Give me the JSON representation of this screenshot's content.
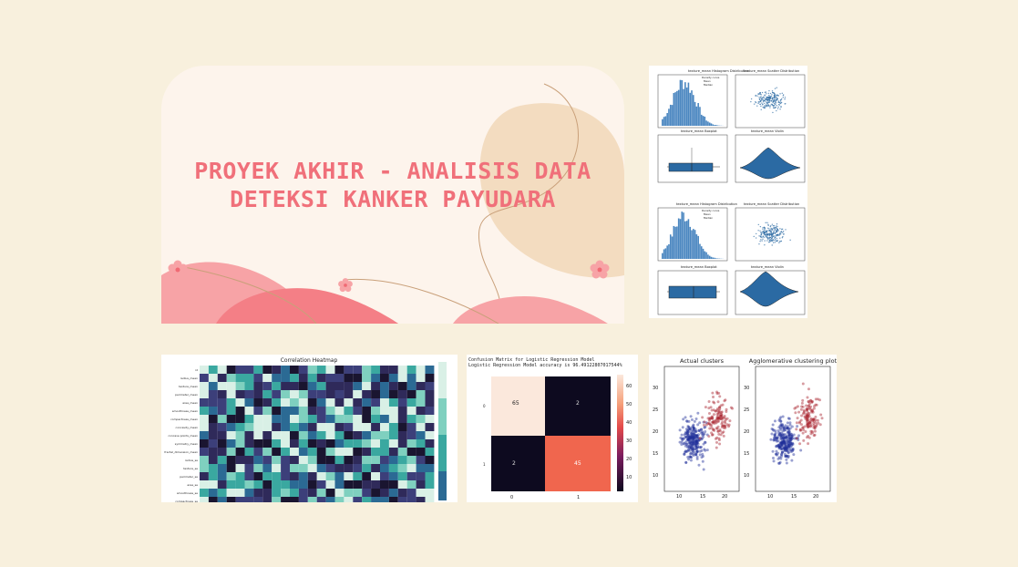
{
  "slide": {
    "title_line1": "PROYEK AKHIR - ANALISIS DATA",
    "title_line2": "DETEKSI KANKER PAYUDARA"
  },
  "colors": {
    "background": "#f8f0dd",
    "title": "#f0707a",
    "accent_pink": "#f47f86",
    "accent_peach": "#f3dcc0",
    "plot_blue": "#2b6aa3",
    "heatmap_dark": "#2f2a5a",
    "heatmap_teal": "#3aa8a0"
  },
  "distribution_panel": {
    "group1": {
      "hist_title": "texture_mean Histogram Distribution",
      "scatter_title": "texture_mean Scatter Distribution",
      "box_title": "texture_mean Boxplot",
      "violin_title": "texture_mean Violin",
      "legend": [
        "Density curve",
        "Mean",
        "Median"
      ]
    },
    "group2": {
      "hist_title": "texture_mean Histogram Distribution",
      "scatter_title": "texture_mean Scatter Distribution",
      "box_title": "texture_mean Boxplot",
      "violin_title": "texture_mean Violin",
      "legend": [
        "Density curve",
        "Mean",
        "Median"
      ]
    }
  },
  "heatmap_panel": {
    "title": "Correlation Heatmap",
    "row_labels": [
      "id",
      "radius_mean",
      "texture_mean",
      "perimeter_mean",
      "area_mean",
      "smoothness_mean",
      "compactness_mean",
      "concavity_mean",
      "concave points_mean",
      "symmetry_mean",
      "fractal_dimension_mean",
      "radius_se",
      "texture_se",
      "perimeter_se",
      "area_se",
      "smoothness_se",
      "compactness_se"
    ]
  },
  "confusion_panel": {
    "title_line1": "Confusion Matrix for Logistic Regression Model",
    "title_line2": "Logistic Regression Model accuracy is 96.49122807017544%",
    "cells": [
      "65",
      "2",
      "2",
      "45"
    ],
    "x_ticks": [
      "0",
      "1"
    ],
    "y_ticks": [
      "0",
      "1"
    ],
    "colorbar_ticks": [
      "60",
      "50",
      "40",
      "30",
      "20",
      "10"
    ]
  },
  "cluster_panel": {
    "left_title": "Actual clusters",
    "right_title": "Agglomerative clustering plot",
    "y_ticks": [
      "30",
      "25",
      "20",
      "15",
      "10"
    ],
    "x_ticks": [
      "10",
      "15",
      "20"
    ]
  }
}
